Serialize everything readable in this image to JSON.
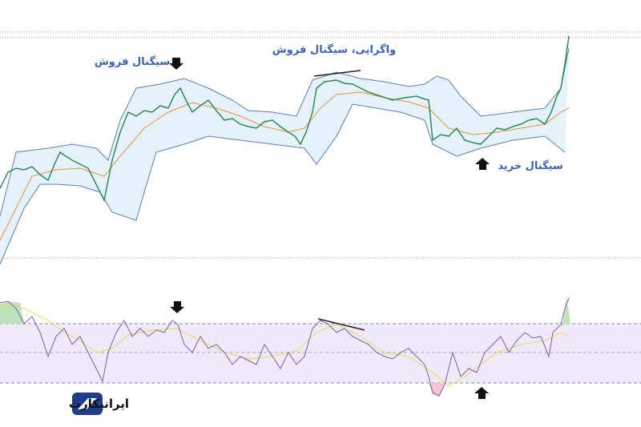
{
  "annotations": {
    "sell_signal": "سیگنال فروش",
    "divergence_sell": "واگرایی، سیگنال فروش",
    "buy_signal": "سیگنال خرید"
  },
  "logo": {
    "text": "ایرانیکارت"
  }
}
